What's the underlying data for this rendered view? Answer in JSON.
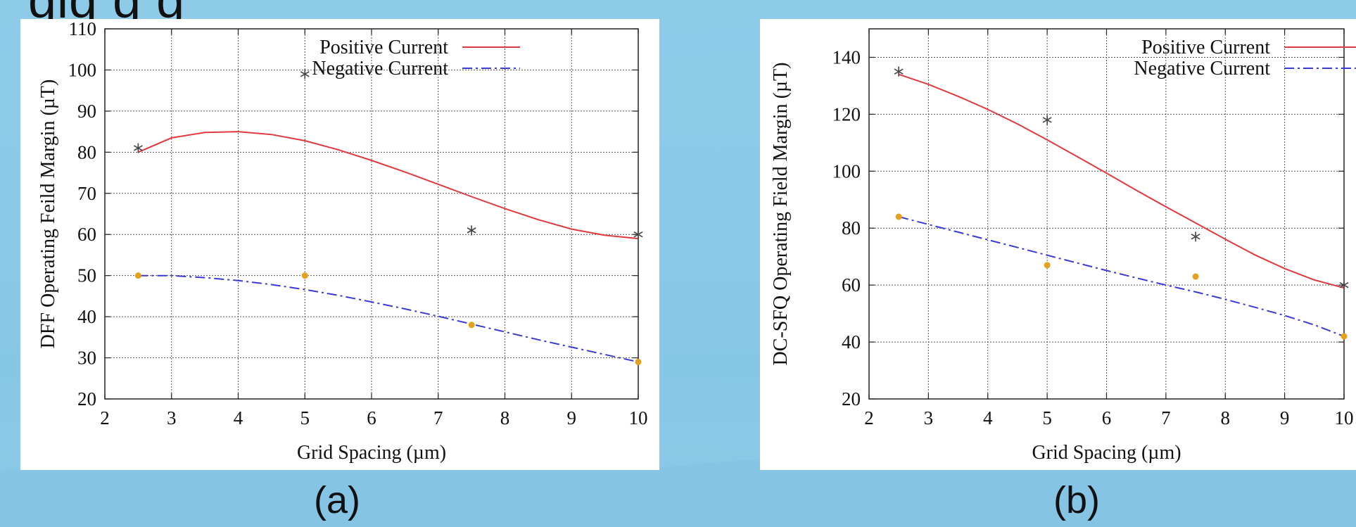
{
  "page_title": "gig  g  g",
  "captions": {
    "a": "(a)",
    "b": "(b)"
  },
  "colors": {
    "positive": "#e0393e",
    "negative": "#3a3ad8",
    "neg_marker": "#e6a020",
    "pos_marker": "#444444"
  },
  "chart_data": [
    {
      "id": "a",
      "type": "line",
      "title": "",
      "xlabel": "Grid Spacing (µm)",
      "ylabel": "DFF Operating Feild Margin (µT)",
      "xlim": [
        2,
        10
      ],
      "ylim": [
        20,
        110
      ],
      "xticks": [
        2,
        3,
        4,
        5,
        6,
        7,
        8,
        9,
        10
      ],
      "yticks": [
        20,
        30,
        40,
        50,
        60,
        70,
        80,
        90,
        100,
        110
      ],
      "grid": true,
      "legend_position": "top-right",
      "series": [
        {
          "name": "Positive Current",
          "style": "solid",
          "curve": {
            "x": [
              2.5,
              3,
              3.5,
              4,
              4.5,
              5,
              5.5,
              6,
              6.5,
              7,
              7.5,
              8,
              8.5,
              9,
              9.5,
              10
            ],
            "y": [
              80,
              83.5,
              84.8,
              85,
              84.3,
              82.8,
              80.6,
              78,
              75.2,
              72.2,
              69.2,
              66.3,
              63.6,
              61.3,
              59.8,
              59
            ]
          },
          "points": {
            "x": [
              2.5,
              5,
              7.5,
              10
            ],
            "y": [
              81,
              99,
              61,
              60
            ]
          }
        },
        {
          "name": "Negative Current",
          "style": "dash-dot",
          "curve": {
            "x": [
              2.5,
              3,
              3.5,
              4,
              4.5,
              5,
              5.5,
              6,
              6.5,
              7,
              7.5,
              8,
              8.5,
              9,
              9.5,
              10
            ],
            "y": [
              50,
              50,
              49.5,
              48.8,
              47.8,
              46.6,
              45.2,
              43.6,
              41.9,
              40.1,
              38.2,
              36.3,
              34.4,
              32.6,
              30.8,
              29
            ]
          },
          "points": {
            "x": [
              2.5,
              5,
              7.5,
              10
            ],
            "y": [
              50,
              50,
              38,
              29
            ]
          }
        }
      ]
    },
    {
      "id": "b",
      "type": "line",
      "title": "",
      "xlabel": "Grid Spacing (µm)",
      "ylabel": "DC-SFQ Operating Field Margin (µT)",
      "xlim": [
        2,
        10
      ],
      "ylim": [
        20,
        150
      ],
      "xticks": [
        2,
        3,
        4,
        5,
        6,
        7,
        8,
        9,
        10
      ],
      "yticks": [
        20,
        40,
        60,
        80,
        100,
        120,
        140
      ],
      "grid": true,
      "legend_position": "top-right",
      "series": [
        {
          "name": "Positive Current",
          "style": "solid",
          "curve": {
            "x": [
              2.5,
              3,
              3.5,
              4,
              4.5,
              5,
              5.5,
              6,
              6.5,
              7,
              7.5,
              8,
              8.5,
              9,
              9.5,
              10
            ],
            "y": [
              134,
              130.5,
              126.3,
              121.7,
              116.6,
              111,
              105.2,
              99.3,
              93.3,
              87.5,
              81.8,
              76.1,
              70.6,
              65.8,
              61.8,
              59
            ]
          },
          "points": {
            "x": [
              2.5,
              5,
              7.5,
              10
            ],
            "y": [
              135,
              118,
              77,
              60
            ]
          }
        },
        {
          "name": "Negative Current",
          "style": "dash-dot",
          "curve": {
            "x": [
              2.5,
              3,
              3.5,
              4,
              4.5,
              5,
              5.5,
              6,
              6.5,
              7,
              7.5,
              8,
              8.5,
              9,
              9.5,
              10
            ],
            "y": [
              84,
              81.3,
              78.6,
              75.9,
              73.2,
              70.5,
              67.8,
              65.1,
              62.5,
              60,
              57.6,
              55,
              52.2,
              49.3,
              46,
              42
            ]
          },
          "points": {
            "x": [
              2.5,
              5,
              7.5,
              10
            ],
            "y": [
              84,
              67,
              63,
              42
            ]
          }
        }
      ]
    }
  ]
}
